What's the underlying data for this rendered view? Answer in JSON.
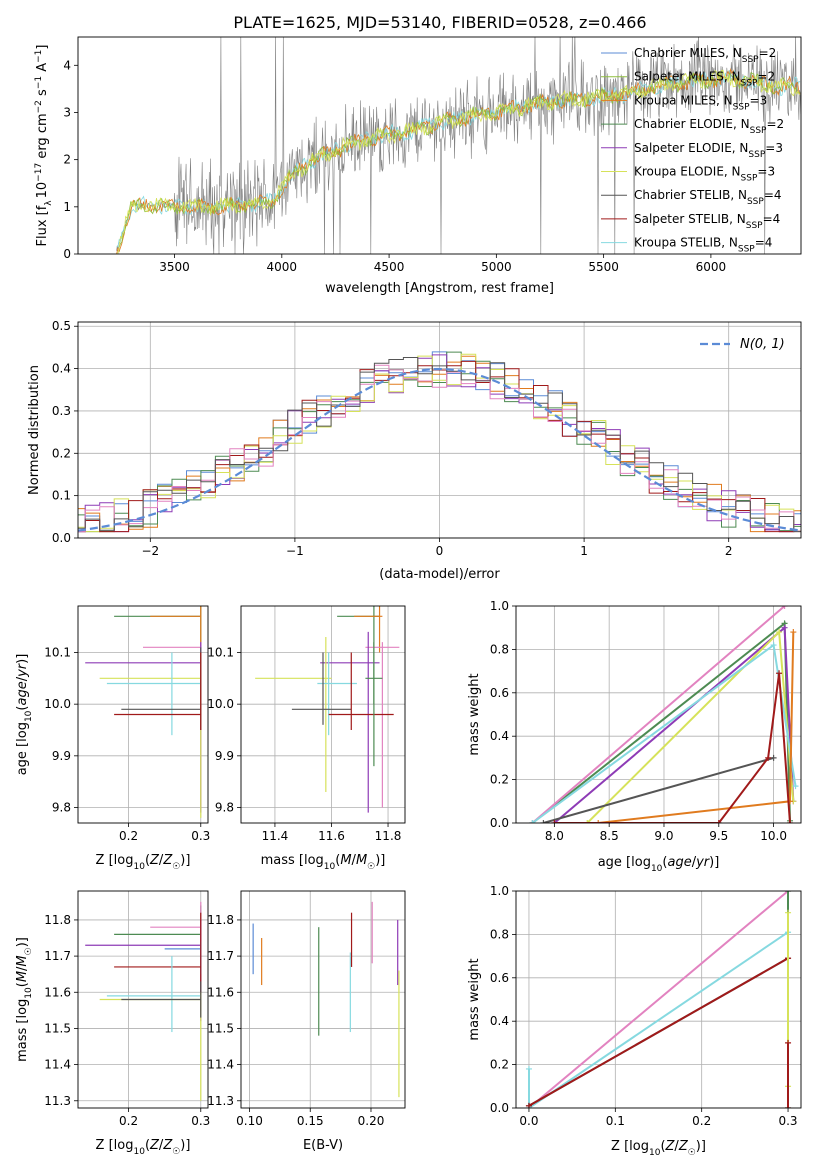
{
  "title": "PLATE=1625, MJD=53140, FIBERID=0528, z=0.466",
  "colors": {
    "Chabrier MILES": "#5b8bd6",
    "Salpeter MILES": "#8fbf3f",
    "Kroupa MILES": "#e07b1f",
    "Chabrier ELODIE": "#4d8b52",
    "Salpeter ELODIE": "#8e3bb6",
    "Kroupa ELODIE": "#d6e25a",
    "Chabrier STELIB": "#555555",
    "Salpeter STELIB": "#a01a1a",
    "Kroupa STELIB": "#86d9e0",
    "pink": "#e283c0",
    "data": "#808080",
    "grid": "#b0b0b0"
  },
  "chart_data": [
    {
      "type": "line",
      "xlabel": "wavelength [Angstrom, rest frame]",
      "ylabel_main": "Flux [f",
      "ylabel_sub": "λ",
      "ylabel_rest": "10",
      "ylabel_exp": "−17",
      "ylabel_tail": " erg cm",
      "xlim": [
        3050,
        6420
      ],
      "ylim": [
        0,
        4.6
      ],
      "xticks": [
        "3500",
        "4000",
        "4500",
        "5000",
        "5500",
        "6000"
      ],
      "yticks": [
        "0",
        "1",
        "2",
        "3",
        "4"
      ],
      "legend": [
        {
          "name": "Chabrier MILES",
          "n": "2"
        },
        {
          "name": "Salpeter MILES",
          "n": "2"
        },
        {
          "name": "Kroupa MILES",
          "n": "3"
        },
        {
          "name": "Chabrier ELODIE",
          "n": "2"
        },
        {
          "name": "Salpeter ELODIE",
          "n": "3"
        },
        {
          "name": "Kroupa ELODIE",
          "n": "3"
        },
        {
          "name": "Chabrier STELIB",
          "n": "4"
        },
        {
          "name": "Salpeter STELIB",
          "n": "4"
        },
        {
          "name": "Kroupa STELIB",
          "n": "4"
        }
      ],
      "model_nodes": {
        "x": [
          3230,
          3300,
          3400,
          3500,
          3700,
          3800,
          3950,
          4050,
          4150,
          4300,
          4450,
          4600,
          4700,
          4800,
          4900,
          5000,
          5100,
          5200,
          5300,
          5400,
          5500,
          5600,
          5700,
          5800,
          5900,
          6000,
          6100,
          6200,
          6300,
          6400
        ],
        "y": [
          0.05,
          1.0,
          1.05,
          1.0,
          1.0,
          1.05,
          1.1,
          1.7,
          2.0,
          2.3,
          2.5,
          2.6,
          2.75,
          2.85,
          2.95,
          3.0,
          3.1,
          3.2,
          3.25,
          3.3,
          3.35,
          3.4,
          3.5,
          3.6,
          3.65,
          3.7,
          3.75,
          3.65,
          3.55,
          3.55
        ]
      }
    },
    {
      "type": "bar",
      "xlabel": "(data-model)/error",
      "ylabel": "Normed distribution",
      "xlim": [
        -2.5,
        2.5
      ],
      "ylim": [
        0,
        0.51
      ],
      "xticks": [
        "−2",
        "−1",
        "0",
        "1",
        "2"
      ],
      "yticks": [
        "0.0",
        "0.1",
        "0.2",
        "0.3",
        "0.4",
        "0.5"
      ],
      "legend_label": "N(0, 1)"
    },
    {
      "type": "scatter",
      "xlabel": "Z [log10(Z/Z☉)]",
      "ylabel": "age  [log10(age/yr)]",
      "xlim": [
        0.13,
        0.31
      ],
      "ylim": [
        9.77,
        10.19
      ],
      "xticks": [
        "0.2",
        "0.3"
      ],
      "yticks": [
        "9.8",
        "9.9",
        "10.0",
        "10.1"
      ]
    },
    {
      "type": "scatter",
      "xlabel": "mass [log10(M/M☉)]",
      "xlim": [
        11.28,
        11.86
      ],
      "ylim": [
        9.77,
        10.19
      ],
      "xticks": [
        "11.4",
        "11.6",
        "11.8"
      ],
      "yticks": [
        "9.8",
        "9.9",
        "10.0",
        "10.1"
      ]
    },
    {
      "type": "line",
      "xlabel": "age  [log10(age/yr)]",
      "ylabel": "mass weight",
      "xlim": [
        7.65,
        10.25
      ],
      "ylim": [
        0,
        1
      ],
      "xticks": [
        "8.0",
        "8.5",
        "9.0",
        "9.5",
        "10.0"
      ],
      "yticks": [
        "0.0",
        "0.2",
        "0.4",
        "0.6",
        "0.8",
        "1.0"
      ]
    },
    {
      "type": "scatter",
      "xlabel": "Z [log10(Z/Z☉)]",
      "ylabel": "mass [log10(M/M☉)]",
      "xlim": [
        0.13,
        0.31
      ],
      "ylim": [
        11.28,
        11.88
      ],
      "xticks": [
        "0.2",
        "0.3"
      ],
      "yticks": [
        "11.3",
        "11.4",
        "11.5",
        "11.6",
        "11.7",
        "11.8"
      ]
    },
    {
      "type": "scatter",
      "xlabel": "E(B-V)",
      "xlim": [
        0.093,
        0.228
      ],
      "ylim": [
        11.28,
        11.88
      ],
      "xticks": [
        "0.10",
        "0.15",
        "0.20"
      ],
      "yticks": [
        "11.3",
        "11.4",
        "11.5",
        "11.6",
        "11.7",
        "11.8"
      ]
    },
    {
      "type": "line",
      "xlabel": "Z [log10(Z/Z☉)]",
      "ylabel": "mass weight",
      "xlim": [
        -0.015,
        0.315
      ],
      "ylim": [
        0,
        1
      ],
      "xticks": [
        "0.0",
        "0.1",
        "0.2",
        "0.3"
      ],
      "yticks": [
        "0.0",
        "0.2",
        "0.4",
        "0.6",
        "0.8",
        "1.0"
      ]
    }
  ]
}
